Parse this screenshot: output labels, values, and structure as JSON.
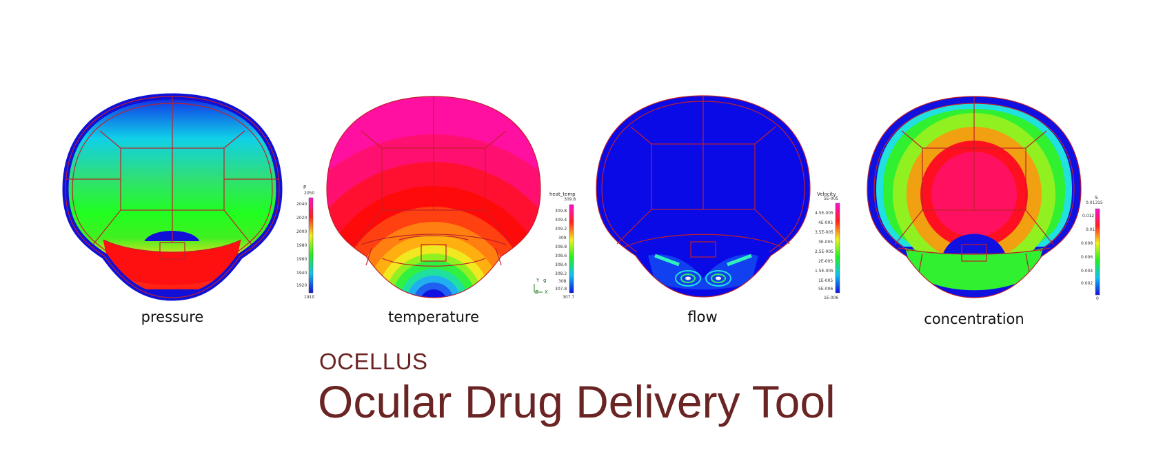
{
  "panels": [
    {
      "caption": "pressure",
      "colorbar": {
        "title": "P",
        "max_label": "2050",
        "min_label": "1910",
        "ticks": [
          "2040",
          "2020",
          "2000",
          "1980",
          "1960",
          "1940",
          "1920"
        ]
      }
    },
    {
      "caption": "temperature",
      "colorbar": {
        "title": "heat_temp",
        "max_label": "309.8",
        "min_label": "307.7",
        "ticks": [
          "309.8",
          "309.4",
          "309.2",
          "309",
          "308.8",
          "308.6",
          "308.4",
          "308.2",
          "308",
          "307.8"
        ]
      },
      "axes_labels": {
        "y": "Y",
        "g": "g",
        "z": "Z",
        "x": "X"
      }
    },
    {
      "caption": "flow",
      "colorbar": {
        "title": "Velocity",
        "max_label": "5E-005",
        "min_label": "1E-006",
        "ticks": [
          "4.5E-005",
          "4E-005",
          "3.5E-005",
          "3E-005",
          "2.5E-005",
          "2E-005",
          "1.5E-005",
          "1E-005",
          "5E-006"
        ]
      }
    },
    {
      "caption": "concentration",
      "colorbar": {
        "title": "S",
        "max_label": "0.01315",
        "min_label": "0",
        "ticks": [
          "0.012",
          "0.01",
          "0.008",
          "0.006",
          "0.004",
          "0.002"
        ]
      }
    }
  ],
  "brand": "OCELLUS",
  "title": "Ocular Drug Delivery Tool",
  "colors": {
    "title": "#6b2424",
    "mesh": "#c0202a"
  }
}
